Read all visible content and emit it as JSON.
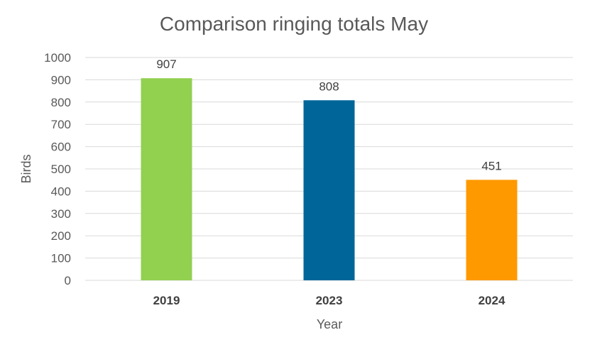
{
  "chart_data": {
    "type": "bar",
    "title": "Comparison ringing totals May",
    "xlabel": "Year",
    "ylabel": "Birds",
    "categories": [
      "2019",
      "2023",
      "2024"
    ],
    "values": [
      907,
      808,
      451
    ],
    "data_labels": [
      "907",
      "808",
      "451"
    ],
    "colors": [
      "#92d050",
      "#006699",
      "#ff9900"
    ],
    "ylim": [
      0,
      1000
    ],
    "yticks": [
      0,
      100,
      200,
      300,
      400,
      500,
      600,
      700,
      800,
      900,
      1000
    ],
    "grid": true,
    "legend": "none"
  }
}
